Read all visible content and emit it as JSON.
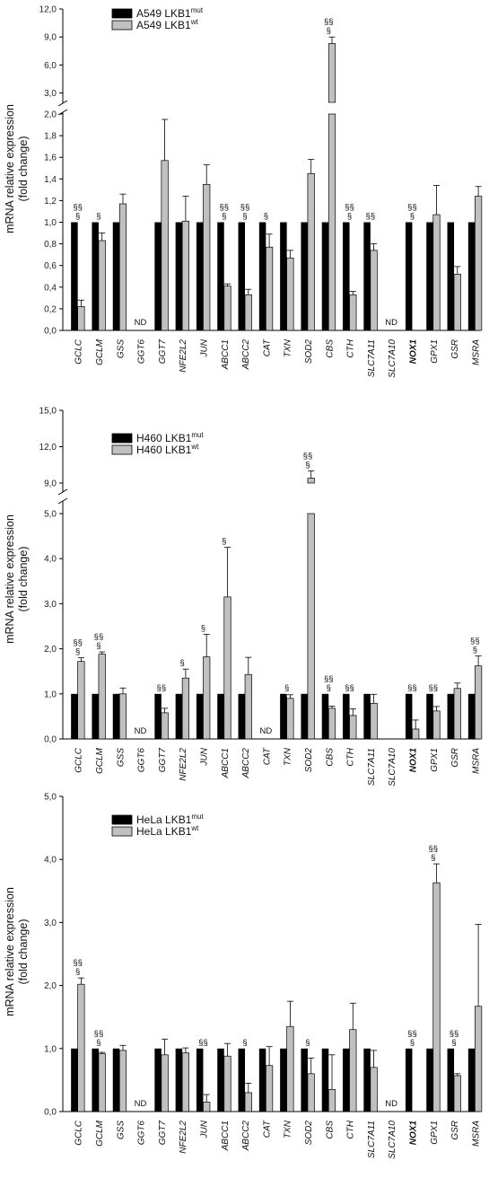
{
  "chart_data": [
    {
      "type": "bar",
      "panel": "A549",
      "ylabel_line1": "mRNA relative expression",
      "ylabel_line2": "(fold change)",
      "yticks_lower": [
        "0,0",
        "0,2",
        "0,4",
        "0,6",
        "0,8",
        "1,0",
        "1,2",
        "1,4",
        "1,6",
        "1,8",
        "2,0"
      ],
      "yticks_upper": [
        "3,0",
        "6,0",
        "9,0",
        "12,0"
      ],
      "ylim_lower": [
        0,
        2.0
      ],
      "ylim_upper": [
        2.0,
        12.0
      ],
      "axis_break": true,
      "legend_position": "top-left",
      "series": [
        {
          "name": "A549 LKB1",
          "sup": "mut",
          "color": "#000000",
          "values": [
            1,
            1,
            1,
            null,
            1,
            1,
            1,
            1,
            1,
            1,
            1,
            1,
            1,
            1,
            1,
            null,
            1,
            1,
            1,
            1
          ],
          "err": [
            0,
            0,
            0,
            0,
            0,
            0,
            0,
            0,
            0,
            0,
            0,
            0,
            0,
            0,
            0,
            0,
            0,
            0,
            0,
            0
          ]
        },
        {
          "name": "A549 LKB1",
          "sup": "wt",
          "color": "#c0c0c0",
          "values": [
            0.22,
            0.83,
            1.17,
            null,
            1.57,
            1.01,
            1.35,
            0.41,
            0.33,
            0.77,
            0.67,
            1.45,
            8.3,
            0.33,
            0.74,
            null,
            null,
            1.07,
            0.52,
            1.24
          ],
          "err": [
            0.06,
            0.07,
            0.09,
            0,
            0.38,
            0.23,
            0.18,
            0.02,
            0.05,
            0.12,
            0.07,
            0.13,
            0.7,
            0.03,
            0.06,
            0,
            0,
            0.27,
            0.07,
            0.09
          ]
        }
      ],
      "significance": [
        "§§\n§",
        "§",
        "",
        "",
        "",
        "",
        "",
        "§§\n§",
        "§§\n§",
        "§",
        "",
        "",
        "§§\n§",
        "§§\n§",
        "§§",
        "",
        "§§\n§",
        "",
        "",
        ""
      ],
      "nd": [
        "",
        "",
        "",
        "ND",
        "",
        "",
        "",
        "",
        "",
        "",
        "",
        "",
        "",
        "",
        "",
        "ND",
        "",
        "",
        "",
        ""
      ]
    },
    {
      "type": "bar",
      "panel": "H460",
      "ylabel_line1": "mRNA relative expression",
      "ylabel_line2": "(fold change)",
      "yticks_lower": [
        "0,0",
        "1,0",
        "2,0",
        "3,0",
        "4,0",
        "5,0"
      ],
      "yticks_upper": [
        "9,0",
        "12,0",
        "15,0"
      ],
      "ylim_lower": [
        0,
        5.0
      ],
      "ylim_upper": [
        9.0,
        15.0
      ],
      "axis_break": true,
      "legend_position": "top-left",
      "series": [
        {
          "name": "H460 LKB1",
          "sup": "mut",
          "color": "#000000",
          "values": [
            1,
            1,
            1,
            null,
            1,
            1,
            1,
            1,
            1,
            null,
            1,
            1,
            1,
            1,
            1,
            null,
            1,
            1,
            1,
            1
          ],
          "err": [
            0,
            0,
            0,
            0,
            0,
            0,
            0,
            0,
            0,
            0,
            0,
            0,
            0,
            0,
            0,
            0,
            0,
            0,
            0,
            0
          ]
        },
        {
          "name": "H460 LKB1",
          "sup": "wt",
          "color": "#c0c0c0",
          "values": [
            1.72,
            1.88,
            1.0,
            null,
            0.58,
            1.35,
            1.82,
            3.15,
            1.43,
            null,
            0.9,
            9.4,
            0.68,
            0.52,
            0.79,
            null,
            0.22,
            0.62,
            1.12,
            1.62
          ],
          "err": [
            0.08,
            0.05,
            0.13,
            0,
            0.1,
            0.2,
            0.5,
            1.1,
            0.38,
            0,
            0.08,
            0.6,
            0.05,
            0.15,
            0.2,
            0,
            0.2,
            0.1,
            0.12,
            0.22
          ]
        }
      ],
      "significance": [
        "§§\n§",
        "§§\n§",
        "",
        "",
        "§§",
        "§",
        "§",
        "§",
        "",
        "",
        "§",
        "§§\n§",
        "§§\n§",
        "§§",
        "",
        "",
        "§§",
        "§§",
        "",
        "§§\n§"
      ],
      "nd": [
        "",
        "",
        "",
        "ND",
        "",
        "",
        "",
        "",
        "",
        "ND",
        "",
        "",
        "",
        "",
        "",
        "",
        "",
        "",
        "",
        ""
      ]
    },
    {
      "type": "bar",
      "panel": "HeLa",
      "ylabel_line1": "mRNA relative expression",
      "ylabel_line2": "(fold change)",
      "yticks": [
        "0,0",
        "1,0",
        "2,0",
        "3,0",
        "4,0",
        "5,0"
      ],
      "ylim": [
        0,
        5.0
      ],
      "axis_break": false,
      "legend_position": "top-left",
      "series": [
        {
          "name": "HeLa LKB1",
          "sup": "mut",
          "color": "#000000",
          "values": [
            1,
            1,
            1,
            null,
            1,
            1,
            1,
            1,
            1,
            1,
            1,
            1,
            1,
            1,
            1,
            null,
            1,
            1,
            1,
            1
          ],
          "err": [
            0,
            0,
            0,
            0,
            0,
            0,
            0,
            0,
            0,
            0,
            0,
            0,
            0,
            0,
            0,
            0,
            0,
            0,
            0,
            0
          ]
        },
        {
          "name": "HeLa LKB1",
          "sup": "wt",
          "color": "#c0c0c0",
          "values": [
            2.02,
            0.92,
            0.97,
            null,
            0.9,
            0.93,
            0.15,
            0.88,
            0.3,
            0.73,
            1.35,
            0.6,
            0.35,
            1.3,
            0.7,
            null,
            null,
            3.63,
            0.57,
            1.67
          ],
          "err": [
            0.1,
            0.02,
            0.08,
            0,
            0.25,
            0.08,
            0.12,
            0.2,
            0.15,
            0.3,
            0.4,
            0.25,
            0.55,
            0.42,
            0.27,
            0,
            0,
            0.3,
            0.03,
            1.3
          ]
        }
      ],
      "significance": [
        "§§\n§",
        "§§\n§",
        "",
        "",
        "",
        "",
        "§§",
        "",
        "§",
        "",
        "",
        "§",
        "",
        "",
        "",
        "",
        "§§\n§",
        "§§\n§",
        "§§\n§",
        ""
      ],
      "nd": [
        "",
        "",
        "",
        "ND",
        "",
        "",
        "",
        "",
        "",
        "",
        "",
        "",
        "",
        "",
        "",
        "ND",
        "",
        "",
        "",
        ""
      ]
    }
  ],
  "categories": [
    "GCLC",
    "GCLM",
    "GSS",
    "GGT6",
    "GGT7",
    "NFE2L2",
    "JUN",
    "ABCC1",
    "ABCC2",
    "CAT",
    "TXN",
    "SOD2",
    "CBS",
    "CTH",
    "SLC7A11",
    "SLC7A10",
    "NOX1",
    "GPX1",
    "GSR",
    "MSRA"
  ],
  "highlight_category": "NOX1",
  "highlight_color": "#e0262b"
}
